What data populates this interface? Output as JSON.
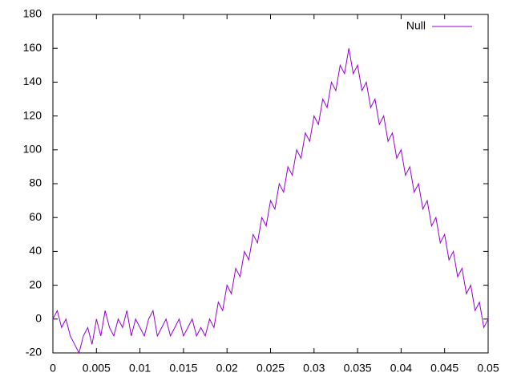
{
  "chart_data": {
    "type": "line",
    "x": [
      0,
      0.0005,
      0.001,
      0.0015,
      0.002,
      0.0025,
      0.003,
      0.0035,
      0.004,
      0.0045,
      0.005,
      0.0055,
      0.006,
      0.0065,
      0.007,
      0.0075,
      0.008,
      0.0085,
      0.009,
      0.0095,
      0.01,
      0.0105,
      0.011,
      0.0115,
      0.012,
      0.0125,
      0.013,
      0.0135,
      0.014,
      0.0145,
      0.015,
      0.0155,
      0.016,
      0.0165,
      0.017,
      0.0175,
      0.018,
      0.0185,
      0.019,
      0.0195,
      0.02,
      0.0205,
      0.021,
      0.0215,
      0.022,
      0.0225,
      0.023,
      0.0235,
      0.024,
      0.0245,
      0.025,
      0.0255,
      0.026,
      0.0265,
      0.027,
      0.0275,
      0.028,
      0.0285,
      0.029,
      0.0295,
      0.03,
      0.0305,
      0.031,
      0.0315,
      0.032,
      0.0325,
      0.033,
      0.0335,
      0.034,
      0.0345,
      0.035,
      0.0355,
      0.036,
      0.0365,
      0.037,
      0.0375,
      0.038,
      0.0385,
      0.039,
      0.0395,
      0.04,
      0.0405,
      0.041,
      0.0415,
      0.042,
      0.0425,
      0.043,
      0.0435,
      0.044,
      0.0445,
      0.045,
      0.0455,
      0.046,
      0.0465,
      0.047,
      0.0475,
      0.048,
      0.0485,
      0.049,
      0.0495,
      0.05
    ],
    "series": [
      {
        "name": "Null",
        "color": "#9400d3",
        "values": [
          0,
          5,
          -5,
          0,
          -10,
          -15,
          -20,
          -10,
          -5,
          -15,
          0,
          -10,
          5,
          -5,
          -10,
          0,
          -5,
          5,
          -10,
          0,
          -5,
          -10,
          0,
          5,
          -10,
          -5,
          0,
          -10,
          -5,
          0,
          -10,
          -5,
          0,
          -10,
          -5,
          -10,
          0,
          -5,
          10,
          5,
          20,
          15,
          30,
          25,
          40,
          35,
          50,
          45,
          60,
          55,
          70,
          65,
          80,
          75,
          90,
          85,
          100,
          95,
          110,
          105,
          120,
          115,
          130,
          125,
          140,
          135,
          150,
          145,
          160,
          145,
          150,
          135,
          140,
          125,
          130,
          115,
          120,
          105,
          110,
          95,
          100,
          85,
          90,
          75,
          80,
          65,
          70,
          55,
          60,
          45,
          50,
          35,
          40,
          25,
          30,
          15,
          20,
          5,
          10,
          -5,
          0
        ]
      }
    ],
    "xlim": [
      0,
      0.05
    ],
    "ylim": [
      -20,
      180
    ],
    "xticks": [
      0,
      0.005,
      0.01,
      0.015,
      0.02,
      0.025,
      0.03,
      0.035,
      0.04,
      0.045,
      0.05
    ],
    "yticks": [
      -20,
      0,
      20,
      40,
      60,
      80,
      100,
      120,
      140,
      160,
      180
    ],
    "grid": false,
    "legend": "top-right"
  }
}
